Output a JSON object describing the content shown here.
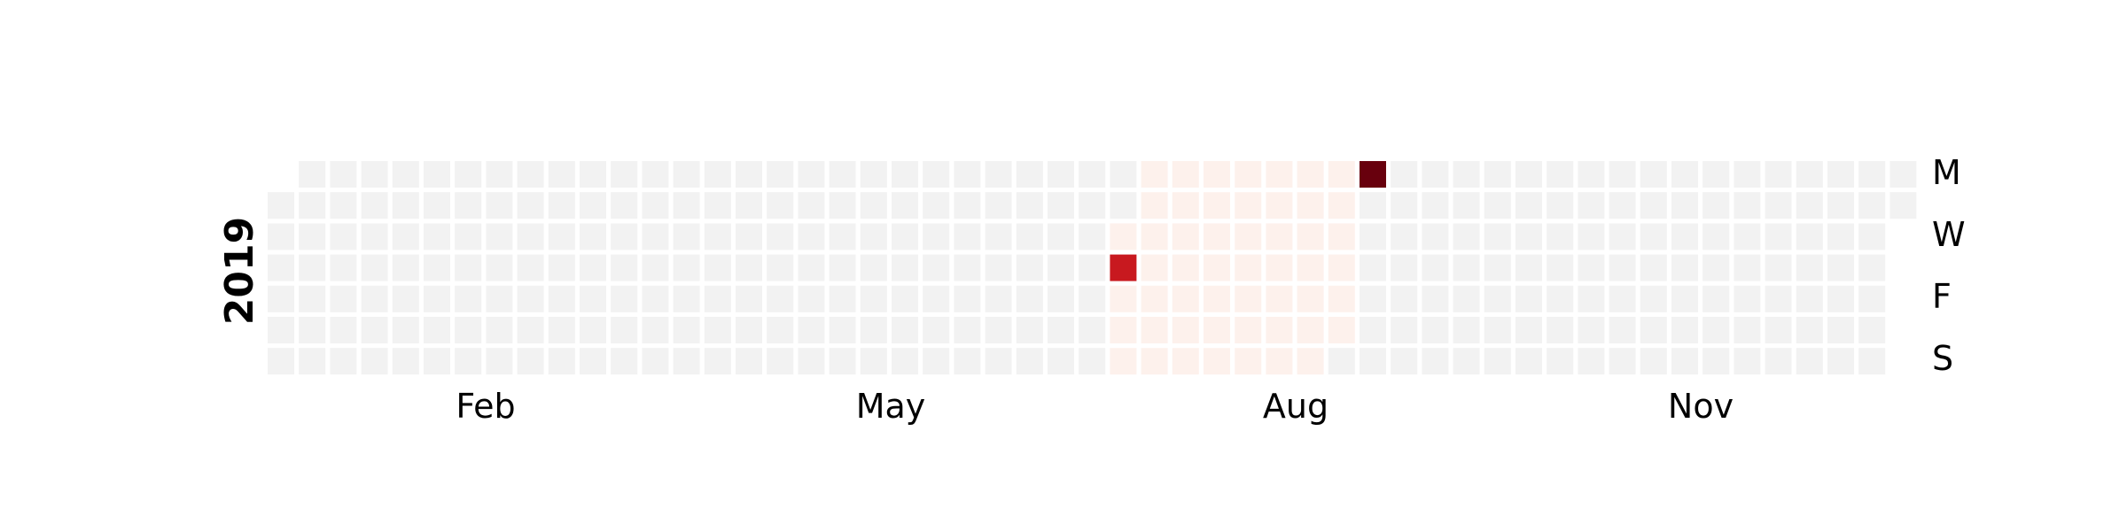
{
  "chart_data": {
    "type": "heatmap",
    "title": "",
    "year": "2019",
    "month_labels": [
      "Feb",
      "May",
      "Aug",
      "Nov"
    ],
    "weekday_labels": [
      "M",
      "W",
      "F",
      "S"
    ],
    "colors": {
      "no_data": "#f2f2f2",
      "low": "#fdf1ec",
      "high": "#c8191f",
      "max": "#68000d"
    },
    "light_range": {
      "start": "2019-07-10",
      "end": "2019-08-31"
    },
    "highlighted_days": [
      {
        "date": "2019-07-11",
        "level": "high"
      },
      {
        "date": "2019-09-02",
        "level": "max"
      }
    ]
  }
}
